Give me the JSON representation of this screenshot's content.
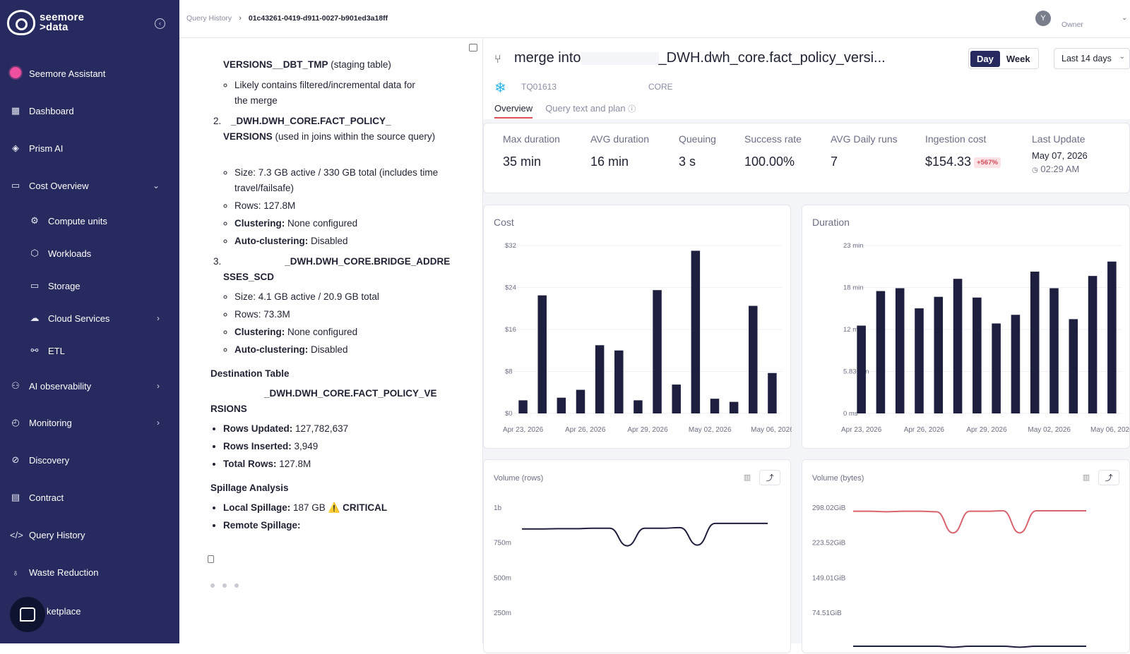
{
  "app": {
    "logo_line1": "seemore",
    "logo_line2": ">data"
  },
  "sidebar": {
    "items": [
      {
        "label": "Seemore Assistant",
        "icon": "assistant-icon"
      },
      {
        "label": "Dashboard",
        "icon": "dashboard-icon"
      },
      {
        "label": "Prism AI",
        "icon": "prism-icon"
      },
      {
        "label": "Cost Overview",
        "icon": "cost-icon"
      },
      {
        "label": "Compute units",
        "icon": "gear-icon"
      },
      {
        "label": "Workloads",
        "icon": "cube-icon"
      },
      {
        "label": "Storage",
        "icon": "storage-icon"
      },
      {
        "label": "Cloud Services",
        "icon": "cloud-icon"
      },
      {
        "label": "ETL",
        "icon": "etl-icon"
      },
      {
        "label": "AI observability",
        "icon": "ai-icon"
      },
      {
        "label": "Monitoring",
        "icon": "monitoring-icon"
      },
      {
        "label": "Discovery",
        "icon": "discovery-icon"
      },
      {
        "label": "Contract",
        "icon": "contract-icon"
      },
      {
        "label": "Query History",
        "icon": "code-icon"
      },
      {
        "label": "Waste Reduction",
        "icon": "bulb-icon"
      },
      {
        "label": "ketplace",
        "icon": "marketplace-icon"
      }
    ]
  },
  "breadcrumb": {
    "parent": "Query History",
    "current": "01c43261-0419-d911-0027-b901ed3a18ff"
  },
  "user": {
    "initial": "Y",
    "role": "Owner"
  },
  "doc": {
    "l1a": "VERSIONS__DBT_TMP",
    "l1b": " (staging table)",
    "l2": "Likely contains filtered/incremental data for the merge",
    "l3num": "2.",
    "l3a": "_DWH.DWH_CORE.FACT_POLICY_",
    "l3b": "VERSIONS",
    "l3c": " (used in joins within the source query)",
    "l4": "Size: 7.3 GB active / 330 GB total (includes time travel/failsafe)",
    "l5": "Rows: 127.8M",
    "l6a": "Clustering:",
    "l6b": " None configured",
    "l7a": "Auto-clustering:",
    "l7b": " Disabled",
    "l8num": "3.",
    "l8a": "_DWH.DWH_CORE.BRIDGE_ADDRE",
    "l8b": "SSES_SCD",
    "l9": "Size: 4.1 GB active / 20.9 GB total",
    "l10": "Rows: 73.3M",
    "l11a": "Clustering:",
    "l11b": " None configured",
    "l12a": "Auto-clustering:",
    "l12b": " Disabled",
    "h1": "Destination Table",
    "l13a": "_DWH.DWH_CORE.FACT_POLICY_VE",
    "l13b": "RSIONS",
    "l14a": "Rows Updated:",
    "l14b": " 127,782,637",
    "l15a": "Rows Inserted:",
    "l15b": " 3,949",
    "l16a": "Total Rows:",
    "l16b": " 127.8M",
    "h2": "Spillage Analysis",
    "l17a": "Local Spillage:",
    "l17b": " 187 GB ",
    "l17c": "⚠️",
    "l17d": " CRITICAL",
    "l18a": "Remote Spillage:"
  },
  "header": {
    "title_prefix": "merge into",
    "title_suffix": "_DWH.dwh_core.fact_policy_versi...",
    "day": "Day",
    "week": "Week",
    "range": "Last 14 days",
    "query_id": "TQ01613",
    "db": "CORE"
  },
  "tabs": [
    {
      "label": "Overview"
    },
    {
      "label": "Query text and plan"
    }
  ],
  "stats": {
    "max_label": "Max duration",
    "max_val": "35 min",
    "avg_label": "AVG duration",
    "avg_val": "16 min",
    "queue_label": "Queuing",
    "queue_val": "3 s",
    "success_label": "Success rate",
    "success_val": "100.00%",
    "runs_label": "AVG Daily runs",
    "runs_val": "7",
    "cost_label": "Ingestion cost",
    "cost_val": "$154.33",
    "cost_badge": "+567%",
    "update_label": "Last Update",
    "update_date": "May 07, 2026",
    "update_time": "02:29 AM"
  },
  "chart_data": [
    {
      "type": "bar",
      "title": "Cost",
      "x_ticks": [
        "Apr 23, 2026",
        "Apr 26, 2026",
        "Apr 29, 2026",
        "May 02, 2026",
        "May 06, 2026"
      ],
      "y_ticks": [
        "$0",
        "$8",
        "$16",
        "$24",
        "$32"
      ],
      "ylim": [
        0,
        32
      ],
      "values": [
        2.5,
        22.5,
        3,
        4.5,
        13,
        12,
        2.5,
        23.5,
        5.5,
        31,
        2.8,
        2.2,
        20.5,
        7.7
      ],
      "color": "#1e1e3f"
    },
    {
      "type": "bar",
      "title": "Duration",
      "x_ticks": [
        "Apr 23, 2026",
        "Apr 26, 2026",
        "Apr 29, 2026",
        "May 02, 2026",
        "May 06, 2026"
      ],
      "y_ticks": [
        "0 ms",
        "5.83 min",
        "12 min",
        "18 min",
        "23 min"
      ],
      "ylim": [
        0,
        23.33
      ],
      "values": [
        12.2,
        17,
        17.4,
        14.6,
        16.2,
        18.7,
        16.1,
        12.5,
        13.7,
        19.7,
        17.4,
        13.1,
        19.1,
        21.1
      ],
      "color": "#1e1e3f"
    },
    {
      "type": "line",
      "title": "Volume (rows)",
      "y_ticks": [
        "250m",
        "500m",
        "750m",
        "1b"
      ],
      "ylim": [
        0,
        1000
      ],
      "values": [
        850,
        850,
        852,
        852,
        855,
        855,
        730,
        855,
        855,
        860,
        735,
        890,
        890,
        890,
        890
      ],
      "color": "#1e1e3f"
    },
    {
      "type": "line",
      "title": "Volume (bytes)",
      "y_ticks": [
        "74.51GiB",
        "149.01GiB",
        "223.52GiB",
        "298.02GiB"
      ],
      "ylim": [
        0,
        298.02
      ],
      "series": [
        {
          "values": [
            291,
            291,
            290,
            291,
            291,
            290,
            245,
            291,
            291,
            292,
            245,
            292,
            292,
            292,
            292
          ],
          "color": "#d9646e"
        },
        {
          "values": [
            4,
            4,
            4,
            4,
            4,
            4,
            2,
            4,
            4,
            4,
            2,
            4,
            4,
            4,
            4
          ],
          "color": "#1e1e3f"
        }
      ]
    }
  ]
}
